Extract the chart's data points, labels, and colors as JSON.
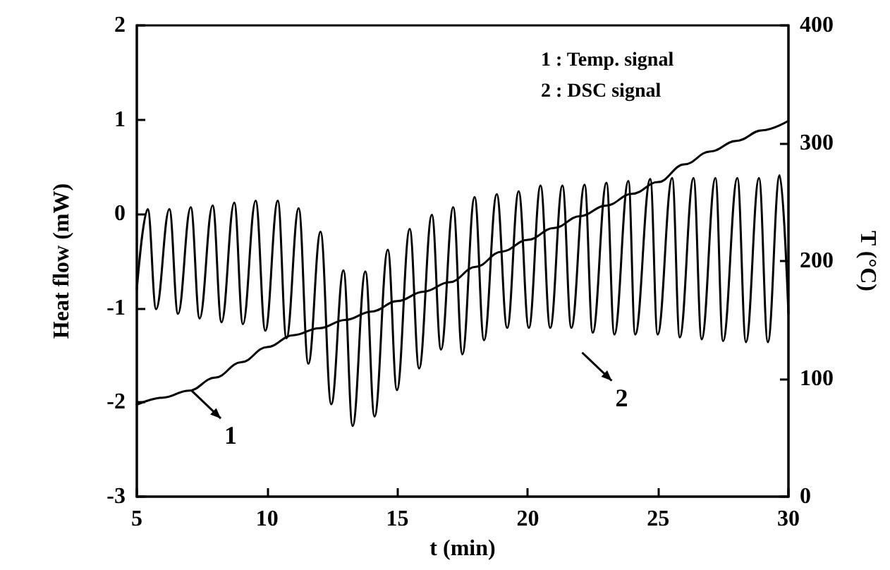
{
  "chart_data": {
    "type": "line",
    "xlabel": "t (min)",
    "ylabel": "Heat flow (mW)",
    "y2label": "T (°C)",
    "xlim": [
      5,
      30
    ],
    "xticks": [
      5,
      10,
      15,
      20,
      25,
      30
    ],
    "ylim": [
      -3,
      2
    ],
    "yticks": [
      -3,
      -2,
      -1,
      0,
      1,
      2
    ],
    "y2lim": [
      0,
      400
    ],
    "y2ticks": [
      0,
      100,
      200,
      300,
      400
    ],
    "grid": false,
    "marker": "none",
    "line_style": "solid",
    "annotations": [
      "1 : Temp. signal",
      "2 : DSC signal",
      "1",
      "2"
    ],
    "series": [
      {
        "color": "#000000",
        "axis": "y2",
        "x": [
          5,
          6,
          7,
          8,
          9,
          10,
          11,
          12,
          13,
          14,
          15,
          16,
          17,
          18,
          19,
          20,
          21,
          22,
          23,
          24,
          25,
          26,
          27,
          28,
          29,
          30
        ],
        "values": [
          78,
          84,
          90,
          101,
          114,
          127,
          137,
          143,
          150,
          157,
          166,
          174,
          182,
          195,
          208,
          218,
          228,
          238,
          247,
          257,
          267,
          282,
          293,
          302,
          311,
          319
        ]
      },
      {
        "color": "#000000",
        "x": [
          5,
          5.42,
          5.74,
          6.25,
          6.58,
          7.07,
          7.41,
          7.91,
          8.25,
          8.74,
          9.07,
          9.56,
          9.93,
          10.41,
          10.74,
          11.21,
          11.58,
          12.05,
          12.46,
          12.93,
          13.28,
          13.77,
          14.12,
          14.63,
          14.98,
          15.47,
          15.83,
          16.32,
          16.67,
          17.14,
          17.49,
          17.96,
          18.32,
          18.81,
          19.21,
          19.65,
          20.04,
          20.49,
          20.86,
          21.33,
          21.67,
          22.18,
          22.49,
          23.02,
          23.32,
          23.86,
          24.12,
          24.7,
          24.98,
          25.54,
          25.83,
          26.36,
          26.67,
          27.2,
          27.49,
          28.04,
          28.37,
          28.87,
          29.21,
          29.66,
          30
        ],
        "values": [
          -0.8,
          0.05,
          -1.01,
          0.05,
          -1.06,
          0.07,
          -1.11,
          0.09,
          -1.15,
          0.12,
          -1.17,
          0.14,
          -1.24,
          0.14,
          -1.32,
          0.06,
          -1.59,
          -0.19,
          -2.02,
          -0.6,
          -2.25,
          -0.61,
          -2.15,
          -0.38,
          -1.87,
          -0.16,
          -1.64,
          -0.01,
          -1.44,
          0.07,
          -1.49,
          0.18,
          -1.34,
          0.21,
          -1.21,
          0.24,
          -1.21,
          0.3,
          -1.21,
          0.3,
          -1.21,
          0.31,
          -1.26,
          0.33,
          -1.28,
          0.35,
          -1.28,
          0.37,
          -1.28,
          0.38,
          -1.31,
          0.38,
          -1.33,
          0.38,
          -1.35,
          0.38,
          -1.36,
          0.38,
          -1.36,
          0.41,
          -1.06
        ]
      }
    ]
  }
}
